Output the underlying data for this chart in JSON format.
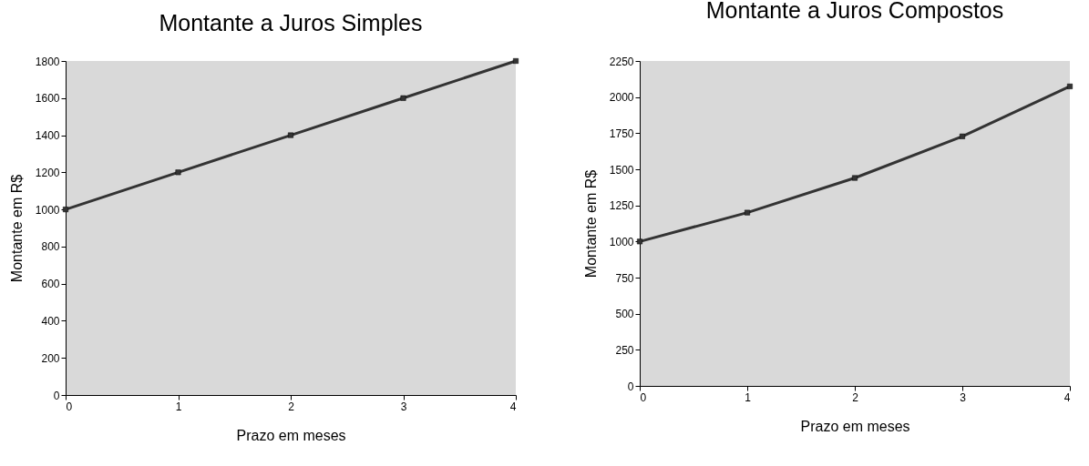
{
  "chart_data": [
    {
      "type": "line",
      "title": "Montante a Juros Simples",
      "xlabel": "Prazo em meses",
      "ylabel": "Montante em R$",
      "x": [
        0,
        1,
        2,
        3,
        4
      ],
      "values": [
        1000,
        1200,
        1400,
        1600,
        1800
      ],
      "color": "#333333",
      "marker": "square",
      "xlim": [
        0,
        4
      ],
      "xticks": [
        0,
        1,
        2,
        3,
        4
      ],
      "ylim": [
        0,
        1800
      ],
      "yticks": [
        0,
        200,
        400,
        600,
        800,
        1000,
        1200,
        1400,
        1600,
        1800
      ]
    },
    {
      "type": "line",
      "title": "Montante a Juros Compostos",
      "xlabel": "Prazo em meses",
      "ylabel": "Montante em R$",
      "x": [
        0,
        1,
        2,
        3,
        4
      ],
      "values": [
        1000,
        1200,
        1440,
        1728,
        2074
      ],
      "color": "#333333",
      "marker": "square",
      "xlim": [
        0,
        4
      ],
      "xticks": [
        0,
        1,
        2,
        3,
        4
      ],
      "ylim": [
        0,
        2250
      ],
      "yticks": [
        0,
        250,
        500,
        750,
        1000,
        1250,
        1500,
        1750,
        2000,
        2250
      ]
    }
  ]
}
